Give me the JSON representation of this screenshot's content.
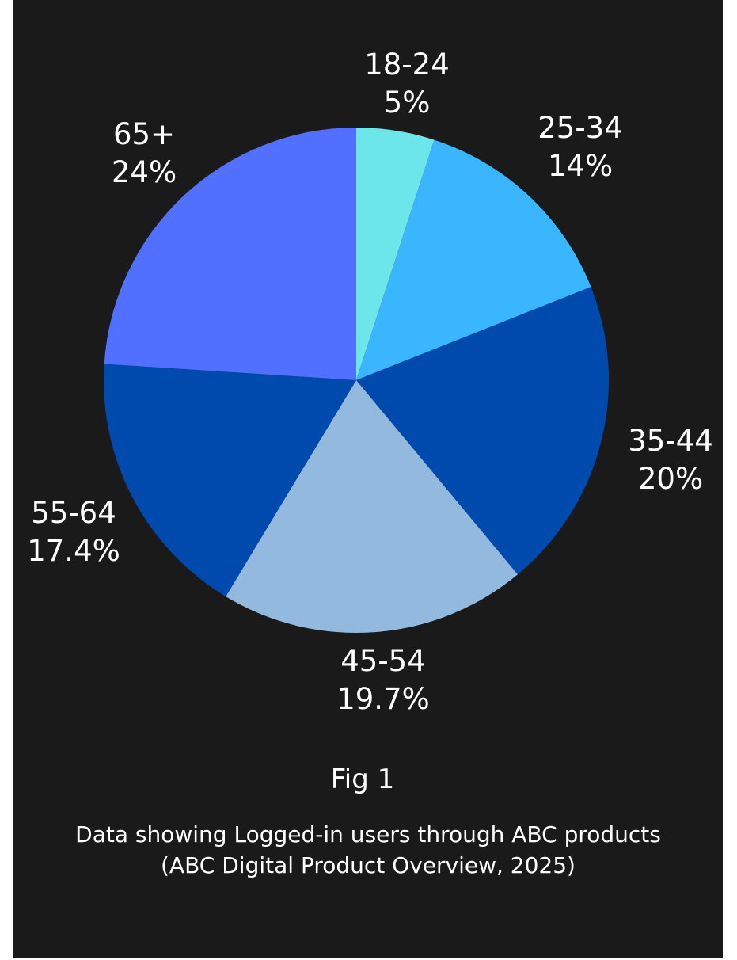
{
  "chart_data": {
    "type": "pie",
    "categories": [
      "18-24",
      "25-34",
      "35-44",
      "45-54",
      "55-64",
      "65+"
    ],
    "values": [
      5,
      14,
      20,
      19.7,
      17.4,
      24
    ],
    "value_labels": [
      "5%",
      "14%",
      "20%",
      "19.7%",
      "17.4%",
      "24%"
    ],
    "colors": [
      "#6de6ea",
      "#3ab6ff",
      "#004aad",
      "#93b9de",
      "#004aad",
      "#5170ff"
    ],
    "start_angle": "12 o'clock",
    "direction": "clockwise"
  },
  "figure": {
    "label": "Fig 1",
    "caption": "Data showing Logged-in users through ABC products (ABC Digital Product Overview, 2025)"
  },
  "colors": {
    "background": "#1b1a1b",
    "text": "#ffffff"
  }
}
